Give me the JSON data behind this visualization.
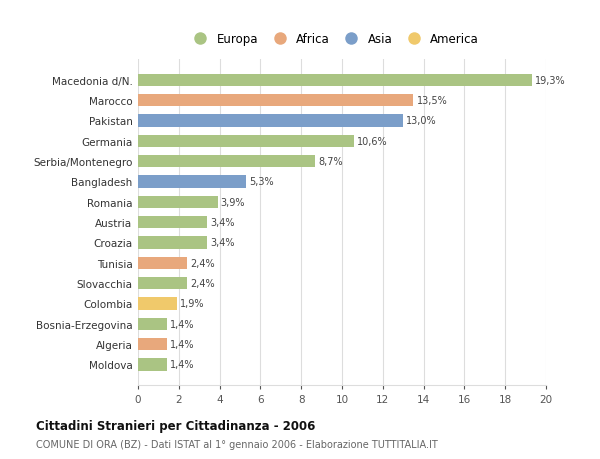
{
  "categories": [
    "Macedonia d/N.",
    "Marocco",
    "Pakistan",
    "Germania",
    "Serbia/Montenegro",
    "Bangladesh",
    "Romania",
    "Austria",
    "Croazia",
    "Tunisia",
    "Slovacchia",
    "Colombia",
    "Bosnia-Erzegovina",
    "Algeria",
    "Moldova"
  ],
  "values": [
    19.3,
    13.5,
    13.0,
    10.6,
    8.7,
    5.3,
    3.9,
    3.4,
    3.4,
    2.4,
    2.4,
    1.9,
    1.4,
    1.4,
    1.4
  ],
  "labels": [
    "19,3%",
    "13,5%",
    "13,0%",
    "10,6%",
    "8,7%",
    "5,3%",
    "3,9%",
    "3,4%",
    "3,4%",
    "2,4%",
    "2,4%",
    "1,9%",
    "1,4%",
    "1,4%",
    "1,4%"
  ],
  "continent": [
    "Europa",
    "Africa",
    "Asia",
    "Europa",
    "Europa",
    "Asia",
    "Europa",
    "Europa",
    "Europa",
    "Africa",
    "Europa",
    "America",
    "Europa",
    "Africa",
    "Europa"
  ],
  "colors": {
    "Europa": "#aac483",
    "Africa": "#e8a87c",
    "Asia": "#7b9ec9",
    "America": "#f0c96b"
  },
  "legend_order": [
    "Europa",
    "Africa",
    "Asia",
    "America"
  ],
  "title1": "Cittadini Stranieri per Cittadinanza - 2006",
  "title2": "COMUNE DI ORA (BZ) - Dati ISTAT al 1° gennaio 2006 - Elaborazione TUTTITALIA.IT",
  "xlim": [
    0,
    20
  ],
  "xticks": [
    0,
    2,
    4,
    6,
    8,
    10,
    12,
    14,
    16,
    18,
    20
  ],
  "bg_color": "#ffffff",
  "grid_color": "#dddddd"
}
